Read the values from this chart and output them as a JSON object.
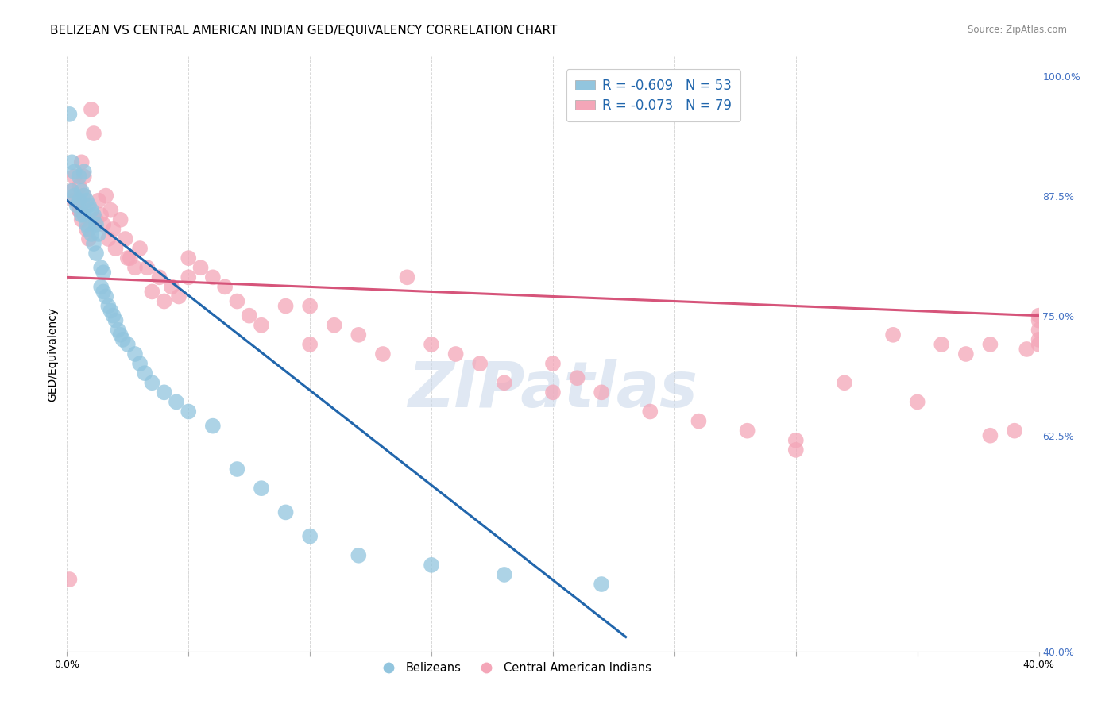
{
  "title": "BELIZEAN VS CENTRAL AMERICAN INDIAN GED/EQUIVALENCY CORRELATION CHART",
  "source": "Source: ZipAtlas.com",
  "ylabel": "GED/Equivalency",
  "xlim": [
    0.0,
    0.4
  ],
  "ylim": [
    0.4,
    1.02
  ],
  "xtick_pos": [
    0.0,
    0.05,
    0.1,
    0.15,
    0.2,
    0.25,
    0.3,
    0.35,
    0.4
  ],
  "xtick_labels": [
    "0.0%",
    "",
    "",
    "",
    "",
    "",
    "",
    "",
    "40.0%"
  ],
  "ytick_pos": [
    0.4,
    0.625,
    0.75,
    0.875,
    1.0
  ],
  "ytick_labels": [
    "40.0%",
    "62.5%",
    "75.0%",
    "87.5%",
    "100.0%"
  ],
  "watermark": "ZIPatlas",
  "legend_blue_r": "R = -0.609",
  "legend_blue_n": "N = 53",
  "legend_pink_r": "R = -0.073",
  "legend_pink_n": "N = 79",
  "blue_color": "#92c5de",
  "pink_color": "#f4a6b8",
  "blue_line_color": "#2166ac",
  "pink_line_color": "#d6547a",
  "scatter_blue_x": [
    0.001,
    0.002,
    0.002,
    0.003,
    0.003,
    0.004,
    0.005,
    0.005,
    0.006,
    0.006,
    0.007,
    0.007,
    0.007,
    0.008,
    0.008,
    0.009,
    0.009,
    0.01,
    0.01,
    0.011,
    0.011,
    0.012,
    0.012,
    0.013,
    0.014,
    0.014,
    0.015,
    0.015,
    0.016,
    0.017,
    0.018,
    0.019,
    0.02,
    0.021,
    0.022,
    0.023,
    0.025,
    0.028,
    0.03,
    0.032,
    0.035,
    0.04,
    0.045,
    0.05,
    0.06,
    0.07,
    0.08,
    0.09,
    0.1,
    0.12,
    0.15,
    0.18,
    0.22
  ],
  "scatter_blue_y": [
    0.96,
    0.88,
    0.91,
    0.875,
    0.9,
    0.865,
    0.87,
    0.895,
    0.88,
    0.855,
    0.875,
    0.9,
    0.855,
    0.87,
    0.845,
    0.865,
    0.84,
    0.86,
    0.835,
    0.855,
    0.825,
    0.845,
    0.815,
    0.835,
    0.78,
    0.8,
    0.775,
    0.795,
    0.77,
    0.76,
    0.755,
    0.75,
    0.745,
    0.735,
    0.73,
    0.725,
    0.72,
    0.71,
    0.7,
    0.69,
    0.68,
    0.67,
    0.66,
    0.65,
    0.635,
    0.59,
    0.57,
    0.545,
    0.52,
    0.5,
    0.49,
    0.48,
    0.47
  ],
  "scatter_pink_x": [
    0.001,
    0.002,
    0.003,
    0.003,
    0.005,
    0.005,
    0.006,
    0.006,
    0.007,
    0.007,
    0.008,
    0.008,
    0.009,
    0.01,
    0.011,
    0.012,
    0.013,
    0.014,
    0.015,
    0.016,
    0.017,
    0.018,
    0.019,
    0.02,
    0.022,
    0.024,
    0.026,
    0.028,
    0.03,
    0.033,
    0.035,
    0.038,
    0.04,
    0.043,
    0.046,
    0.05,
    0.055,
    0.06,
    0.065,
    0.07,
    0.075,
    0.08,
    0.09,
    0.1,
    0.11,
    0.12,
    0.13,
    0.14,
    0.15,
    0.16,
    0.17,
    0.18,
    0.2,
    0.21,
    0.22,
    0.24,
    0.26,
    0.28,
    0.3,
    0.32,
    0.34,
    0.36,
    0.37,
    0.38,
    0.39,
    0.395,
    0.4,
    0.005,
    0.025,
    0.05,
    0.1,
    0.2,
    0.3,
    0.35,
    0.38,
    0.4,
    0.4,
    0.4,
    0.4
  ],
  "scatter_pink_y": [
    0.475,
    0.88,
    0.87,
    0.895,
    0.86,
    0.885,
    0.91,
    0.85,
    0.875,
    0.895,
    0.84,
    0.865,
    0.83,
    0.965,
    0.94,
    0.85,
    0.87,
    0.855,
    0.845,
    0.875,
    0.83,
    0.86,
    0.84,
    0.82,
    0.85,
    0.83,
    0.81,
    0.8,
    0.82,
    0.8,
    0.775,
    0.79,
    0.765,
    0.78,
    0.77,
    0.81,
    0.8,
    0.79,
    0.78,
    0.765,
    0.75,
    0.74,
    0.76,
    0.72,
    0.74,
    0.73,
    0.71,
    0.79,
    0.72,
    0.71,
    0.7,
    0.68,
    0.67,
    0.685,
    0.67,
    0.65,
    0.64,
    0.63,
    0.62,
    0.68,
    0.73,
    0.72,
    0.71,
    0.72,
    0.63,
    0.715,
    0.72,
    0.86,
    0.81,
    0.79,
    0.76,
    0.7,
    0.61,
    0.66,
    0.625,
    0.745,
    0.725,
    0.735,
    0.75
  ],
  "blue_trend_x": [
    0.0,
    0.23
  ],
  "blue_trend_y": [
    0.87,
    0.415
  ],
  "pink_trend_x": [
    0.0,
    0.4
  ],
  "pink_trend_y": [
    0.79,
    0.75
  ],
  "background_color": "#ffffff",
  "grid_color": "#d8d8d8",
  "title_fontsize": 11,
  "tick_fontsize": 9,
  "label_fontsize": 10,
  "watermark_color": "#ccdaeb",
  "right_tick_color": "#4472c4",
  "legend_text_color": "#2166ac"
}
